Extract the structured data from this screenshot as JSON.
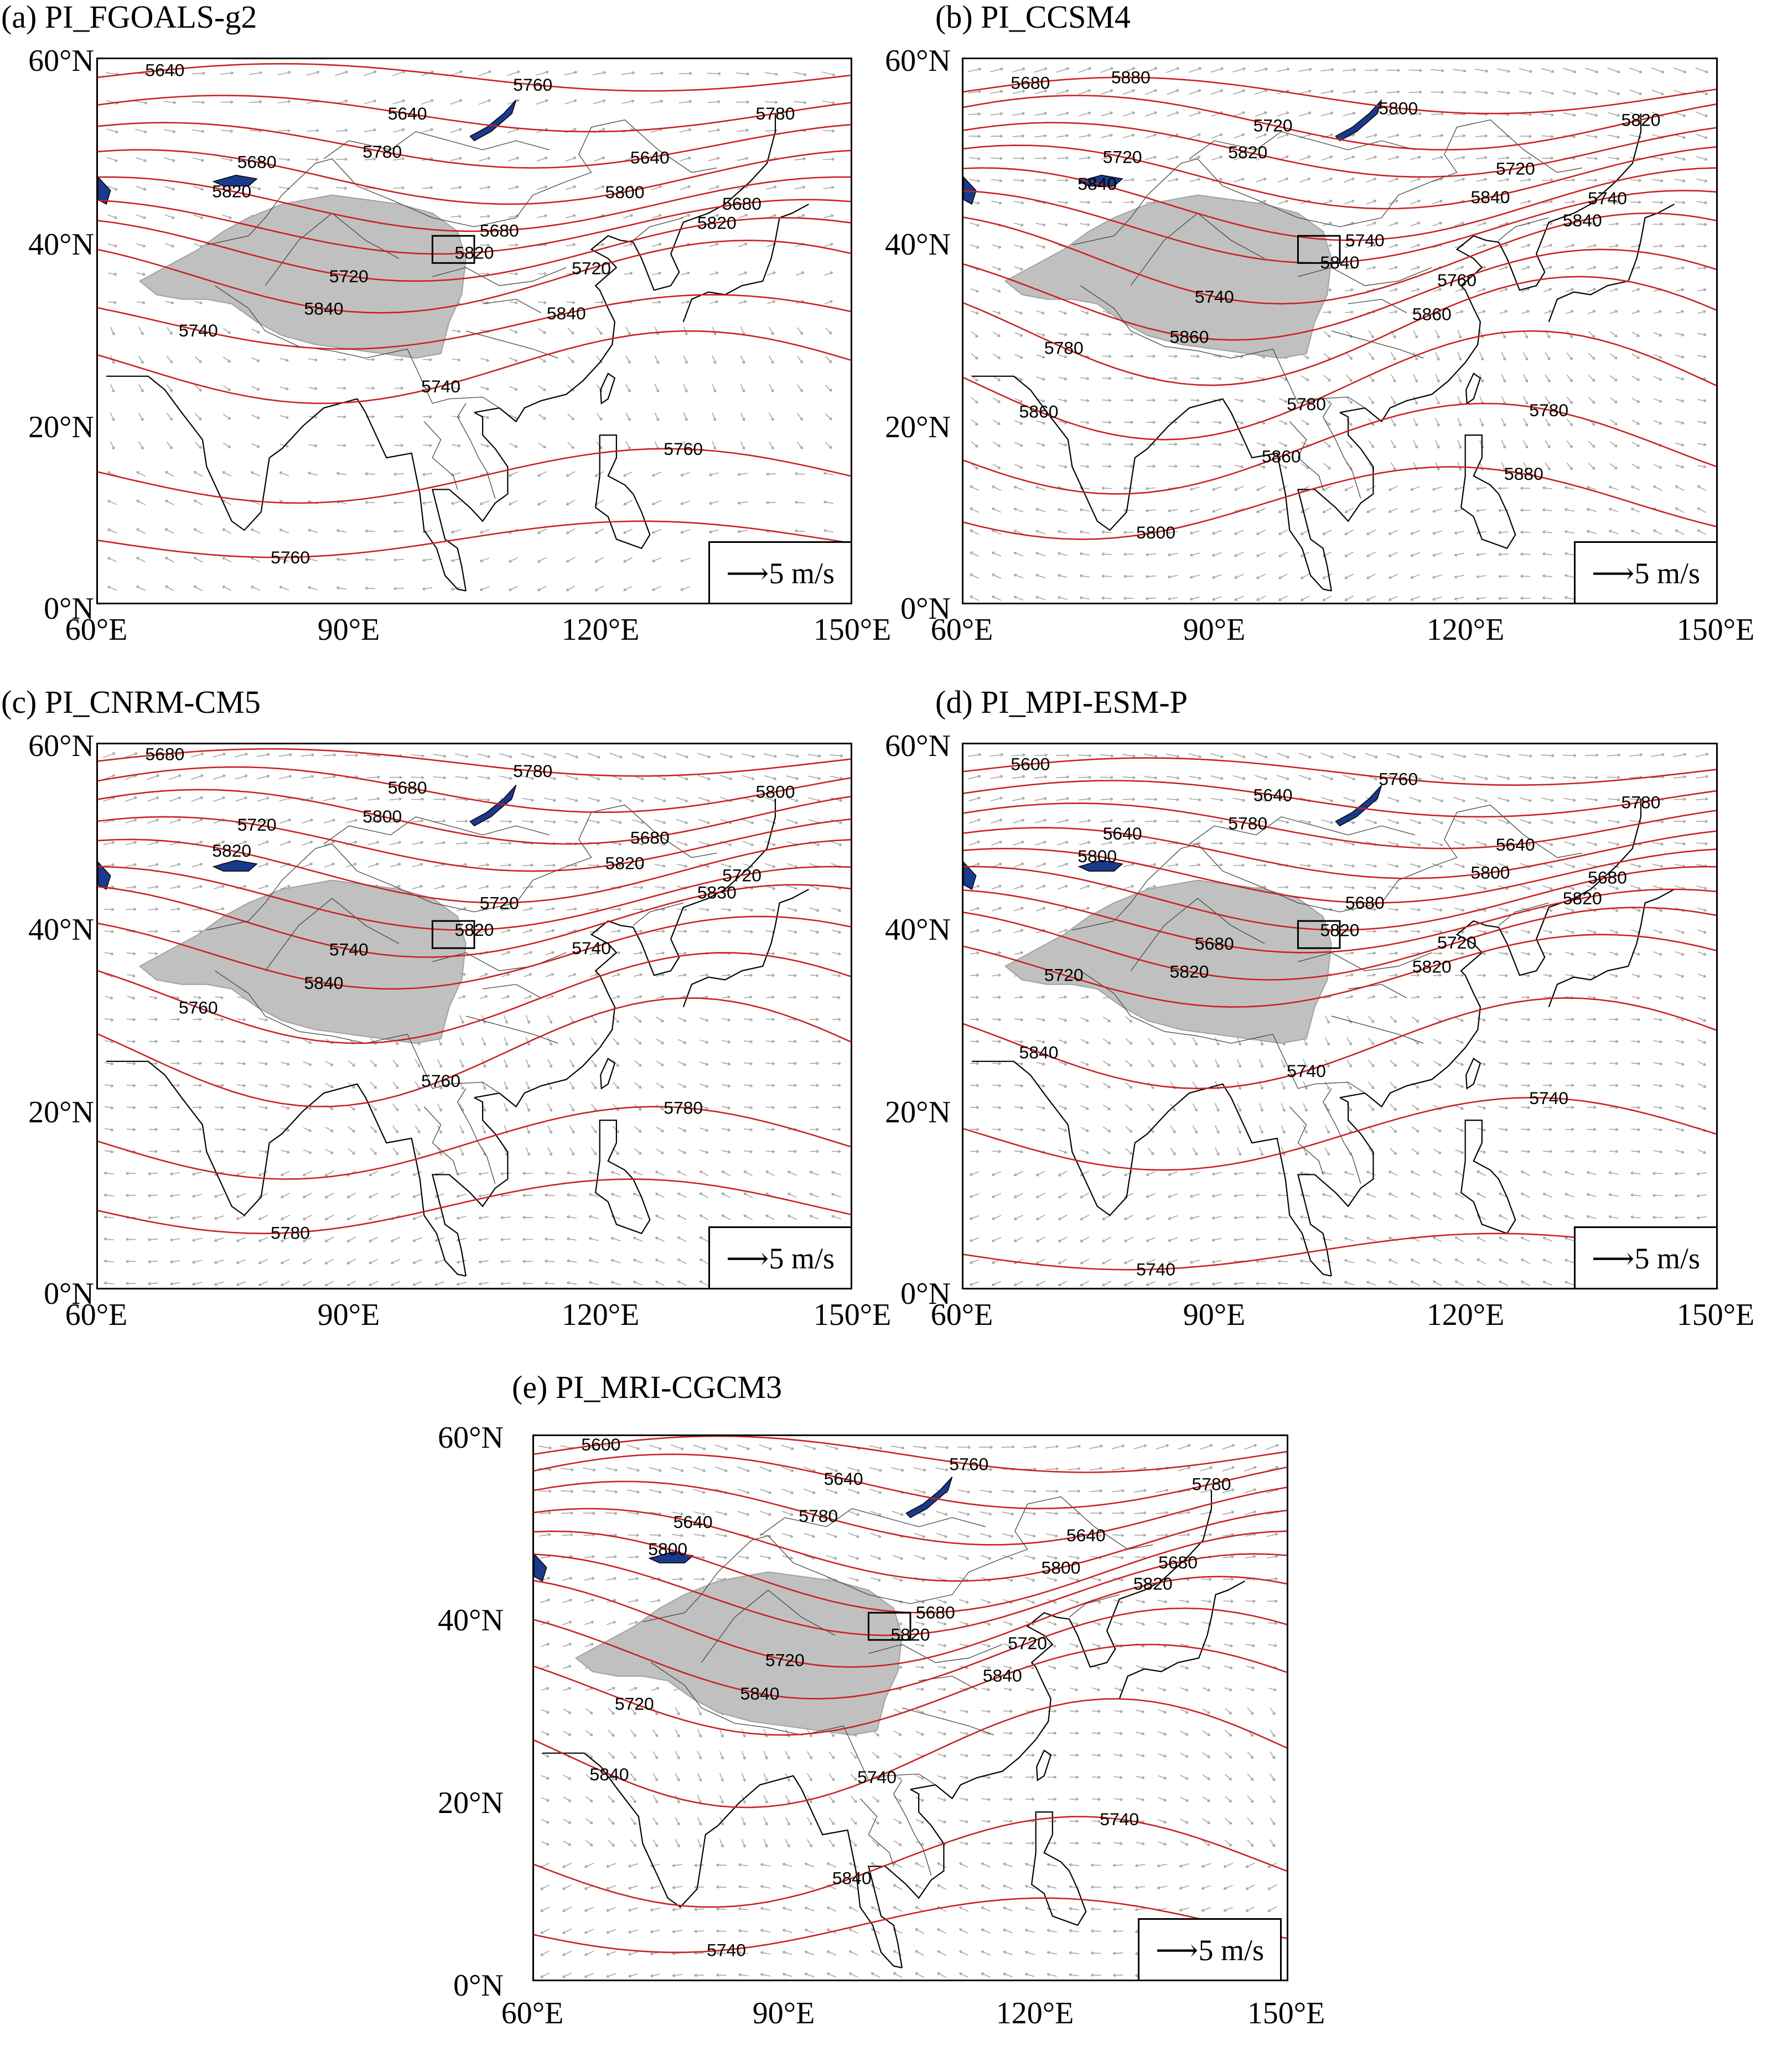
{
  "figure": {
    "lat_labels": [
      "60°N",
      "40°N",
      "20°N",
      "0°N"
    ],
    "lon_labels": [
      "60°E",
      "90°E",
      "120°E",
      "150°E"
    ],
    "reference_vector": "⟶5 m/s",
    "contour_color": "#cc1f1f",
    "plateau_color": "#c0c0c0",
    "lake_color": "#1a3a8c",
    "vector_color": "#888888"
  },
  "panels": [
    {
      "id": "a",
      "title": "(a)  PI_FGOALS-g2",
      "contour_labels": [
        "5640",
        "5640",
        "5640",
        "5680",
        "5680",
        "5680",
        "5720",
        "5720",
        "5740",
        "5740",
        "5760",
        "5760",
        "5760",
        "5780",
        "5780",
        "5800",
        "5820",
        "5820",
        "5820",
        "5840",
        "5840"
      ]
    },
    {
      "id": "b",
      "title": "(b)  PI_CCSM4",
      "contour_labels": [
        "5680",
        "5720",
        "5720",
        "5720",
        "5740",
        "5740",
        "5740",
        "5760",
        "5780",
        "5780",
        "5780",
        "5800",
        "5800",
        "5820",
        "5820",
        "5840",
        "5840",
        "5840",
        "5840",
        "5860",
        "5860",
        "5860",
        "5860",
        "5880",
        "5880"
      ]
    },
    {
      "id": "c",
      "title": "(c)  PI_CNRM-CM5",
      "contour_labels": [
        "5680",
        "5680",
        "5680",
        "5720",
        "5720",
        "5720",
        "5740",
        "5740",
        "5760",
        "5760",
        "5780",
        "5780",
        "5780",
        "5800",
        "5800",
        "5820",
        "5820",
        "5820",
        "5830",
        "5840"
      ]
    },
    {
      "id": "d",
      "title": "(d)  PI_MPI-ESM-P",
      "contour_labels": [
        "5600",
        "5640",
        "5640",
        "5640",
        "5680",
        "5680",
        "5680",
        "5720",
        "5720",
        "5740",
        "5740",
        "5740",
        "5760",
        "5780",
        "5780",
        "5800",
        "5800",
        "5820",
        "5820",
        "5820",
        "5820",
        "5840"
      ]
    },
    {
      "id": "e",
      "title": "(e)  PI_MRI-CGCM3",
      "contour_labels": [
        "5600",
        "5640",
        "5640",
        "5640",
        "5680",
        "5680",
        "5720",
        "5720",
        "5720",
        "5740",
        "5740",
        "5740",
        "5760",
        "5780",
        "5780",
        "5800",
        "5800",
        "5820",
        "5820",
        "5840",
        "5840",
        "5840",
        "5840"
      ]
    }
  ]
}
